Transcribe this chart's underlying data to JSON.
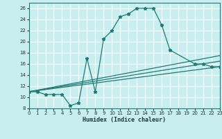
{
  "xlabel": "Humidex (Indice chaleur)",
  "bg_color": "#c8eef0",
  "grid_color": "#ffffff",
  "line_color": "#1e7a72",
  "line1_x": [
    0,
    1,
    2,
    3,
    4,
    5,
    6,
    7,
    8,
    9,
    10,
    11,
    12,
    13,
    14,
    15,
    16,
    17,
    20,
    21,
    22,
    23
  ],
  "line1_y": [
    11,
    11,
    10.5,
    10.5,
    10.5,
    8.5,
    9.0,
    17.0,
    11.0,
    20.5,
    22.0,
    24.5,
    25.0,
    26.0,
    26.0,
    26.0,
    23.0,
    18.5,
    16.0,
    16.0,
    15.5,
    15.5
  ],
  "line2_x": [
    0,
    23
  ],
  "line2_y": [
    11,
    15.5
  ],
  "line3_x": [
    0,
    23
  ],
  "line3_y": [
    11,
    17.5
  ],
  "line4_x": [
    0,
    23
  ],
  "line4_y": [
    11,
    16.5
  ],
  "xlim": [
    0,
    23
  ],
  "ylim": [
    8,
    27
  ],
  "yticks": [
    8,
    10,
    12,
    14,
    16,
    18,
    20,
    22,
    24,
    26
  ],
  "xticks": [
    0,
    1,
    2,
    3,
    4,
    5,
    6,
    7,
    8,
    9,
    10,
    11,
    12,
    13,
    14,
    15,
    16,
    17,
    18,
    19,
    20,
    21,
    22,
    23
  ]
}
